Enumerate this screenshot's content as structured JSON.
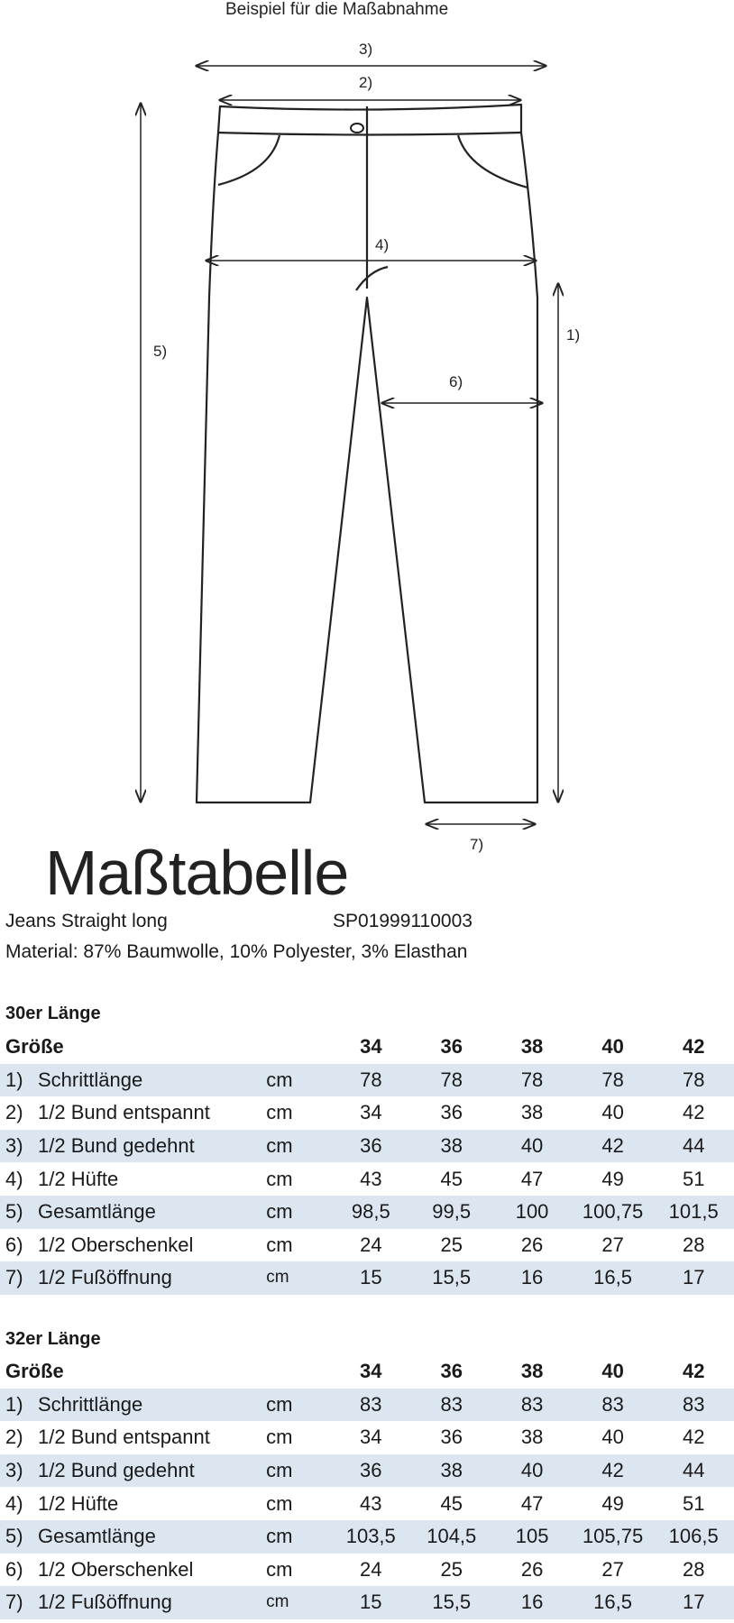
{
  "diagram": {
    "caption": "Beispiel für die Maßabnahme",
    "labels": {
      "m1": "1)",
      "m2": "2)",
      "m3": "3)",
      "m4": "4)",
      "m5": "5)",
      "m6": "6)",
      "m7": "7)"
    }
  },
  "title": "Maßtabelle",
  "product": {
    "name": "Jeans Straight long",
    "article": "SP01999110003",
    "material": "Material: 87% Baumwolle, 10% Polyester, 3% Elasthan"
  },
  "tables": [
    {
      "section": "30er Länge",
      "header": {
        "label": "Größe",
        "sizes": [
          "34",
          "36",
          "38",
          "40",
          "42"
        ]
      },
      "rows": [
        {
          "num": "1)",
          "name": "Schrittlänge",
          "unit": "cm",
          "values": [
            "78",
            "78",
            "78",
            "78",
            "78"
          ]
        },
        {
          "num": "2)",
          "name": "1/2 Bund entspannt",
          "unit": "cm",
          "values": [
            "34",
            "36",
            "38",
            "40",
            "42"
          ]
        },
        {
          "num": "3)",
          "name": "1/2 Bund gedehnt",
          "unit": "cm",
          "values": [
            "36",
            "38",
            "40",
            "42",
            "44"
          ]
        },
        {
          "num": "4)",
          "name": "1/2 Hüfte",
          "unit": "cm",
          "values": [
            "43",
            "45",
            "47",
            "49",
            "51"
          ]
        },
        {
          "num": "5)",
          "name": "Gesamtlänge",
          "unit": "cm",
          "values": [
            "98,5",
            "99,5",
            "100",
            "100,75",
            "101,5"
          ]
        },
        {
          "num": "6)",
          "name": "1/2 Oberschenkel",
          "unit": "cm",
          "values": [
            "24",
            "25",
            "26",
            "27",
            "28"
          ]
        },
        {
          "num": "7)",
          "name": "1/2 Fußöffnung",
          "unit": "cm",
          "values": [
            "15",
            "15,5",
            "16",
            "16,5",
            "17"
          ]
        }
      ]
    },
    {
      "section": "32er Länge",
      "header": {
        "label": "Größe",
        "sizes": [
          "34",
          "36",
          "38",
          "40",
          "42"
        ]
      },
      "rows": [
        {
          "num": "1)",
          "name": "Schrittlänge",
          "unit": "cm",
          "values": [
            "83",
            "83",
            "83",
            "83",
            "83"
          ]
        },
        {
          "num": "2)",
          "name": "1/2 Bund entspannt",
          "unit": "cm",
          "values": [
            "34",
            "36",
            "38",
            "40",
            "42"
          ]
        },
        {
          "num": "3)",
          "name": "1/2 Bund gedehnt",
          "unit": "cm",
          "values": [
            "36",
            "38",
            "40",
            "42",
            "44"
          ]
        },
        {
          "num": "4)",
          "name": "1/2 Hüfte",
          "unit": "cm",
          "values": [
            "43",
            "45",
            "47",
            "49",
            "51"
          ]
        },
        {
          "num": "5)",
          "name": "Gesamtlänge",
          "unit": "cm",
          "values": [
            "103,5",
            "104,5",
            "105",
            "105,75",
            "106,5"
          ]
        },
        {
          "num": "6)",
          "name": "1/2 Oberschenkel",
          "unit": "cm",
          "values": [
            "24",
            "25",
            "26",
            "27",
            "28"
          ]
        },
        {
          "num": "7)",
          "name": "1/2 Fußöffnung",
          "unit": "cm",
          "values": [
            "15",
            "15,5",
            "16",
            "16,5",
            "17"
          ]
        }
      ]
    }
  ],
  "colors": {
    "row_shade": "#dce6f1"
  }
}
